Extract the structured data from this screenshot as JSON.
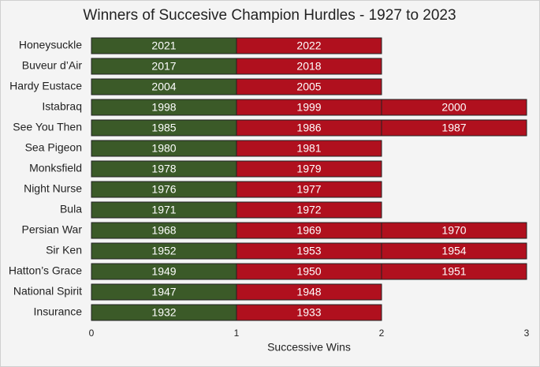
{
  "chart_data": {
    "type": "stacked-bar-horizontal",
    "title": "Winners of Succesive Champion Hurdles - 1927 to 2023",
    "x_label": "Successive Wins",
    "categories": [
      "Honeysuckle",
      "Buveur d’Air",
      "Hardy Eustace",
      "Istabraq",
      "See You Then",
      "Sea Pigeon",
      "Monksfield",
      "Night Nurse",
      "Bula",
      "Persian War",
      "Sir Ken",
      "Hatton’s Grace",
      "National Spirit",
      "Insurance"
    ],
    "series": [
      {
        "color": "#3b5a28",
        "values": [
          1,
          1,
          1,
          1,
          1,
          1,
          1,
          1,
          1,
          1,
          1,
          1,
          1,
          1
        ],
        "year_labels": [
          "2021",
          "2017",
          "2004",
          "1998",
          "1985",
          "1980",
          "1978",
          "1976",
          "1971",
          "1968",
          "1952",
          "1949",
          "1947",
          "1932"
        ]
      },
      {
        "color": "#b0101e",
        "values": [
          1,
          1,
          1,
          1,
          1,
          1,
          1,
          1,
          1,
          1,
          1,
          1,
          1,
          1
        ],
        "year_labels": [
          "2022",
          "2018",
          "2005",
          "1999",
          "1986",
          "1981",
          "1979",
          "1977",
          "1972",
          "1969",
          "1953",
          "1950",
          "1948",
          "1933"
        ]
      },
      {
        "color": "#b0101e",
        "values": [
          null,
          null,
          null,
          1,
          1,
          null,
          null,
          null,
          null,
          1,
          1,
          1,
          null,
          null
        ],
        "year_labels": [
          null,
          null,
          null,
          "2000",
          "1987",
          null,
          null,
          null,
          null,
          "1970",
          "1954",
          "1951",
          null,
          null
        ]
      }
    ],
    "xlim": [
      0,
      3
    ],
    "xticks": [
      0,
      1,
      2,
      3
    ],
    "grid": false
  }
}
